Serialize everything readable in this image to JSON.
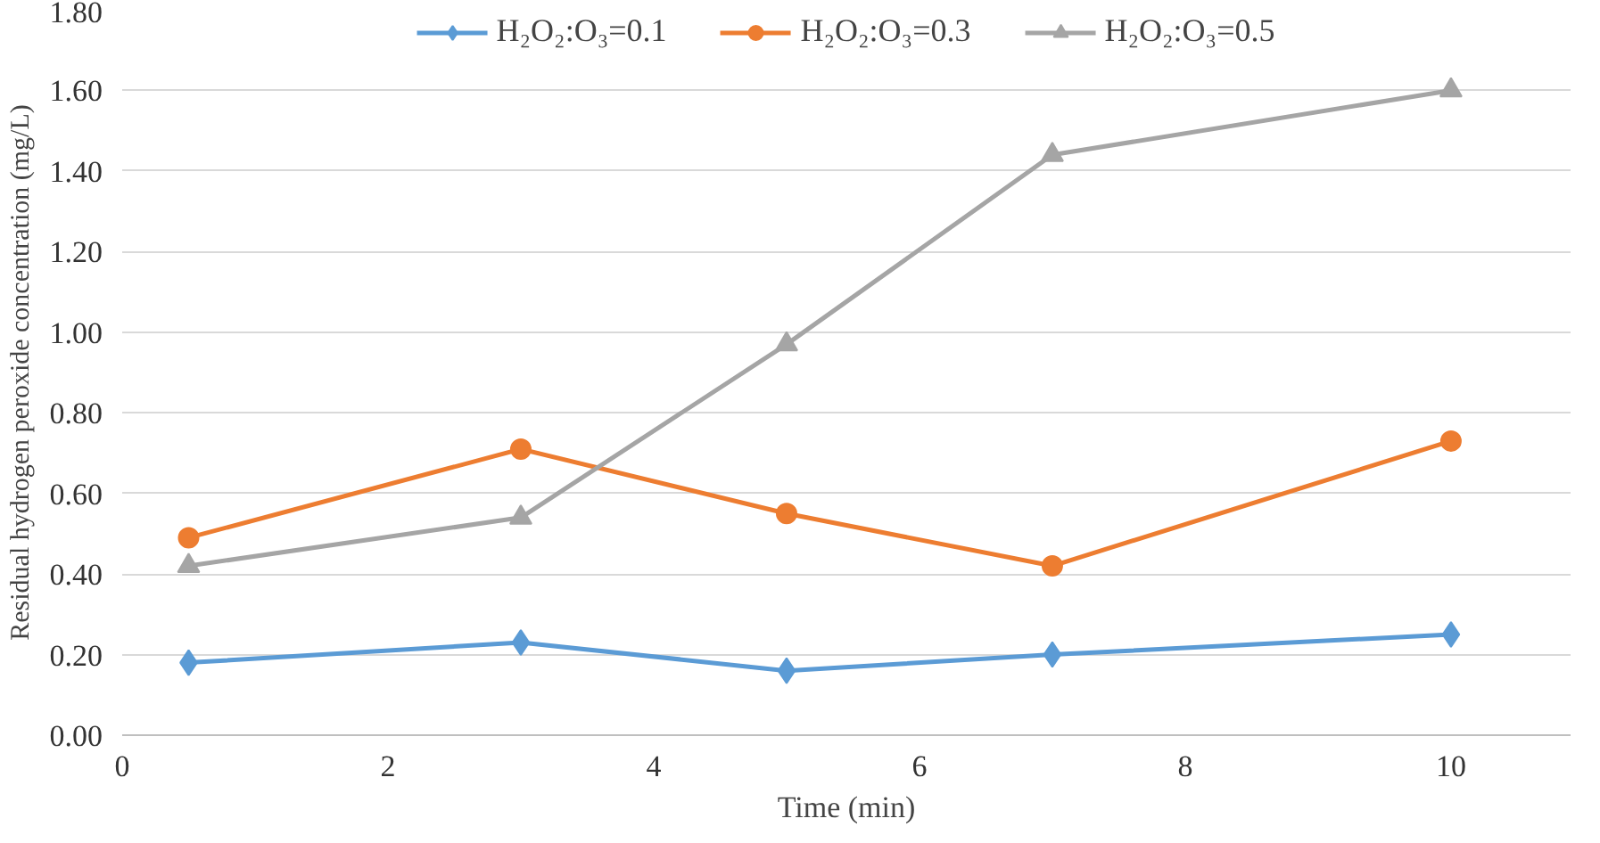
{
  "chart_data": {
    "type": "line",
    "xlabel": "Time (min)",
    "ylabel": "Residual hydrogen peroxide concentration (mg/L)",
    "x": [
      0.5,
      3,
      5,
      7,
      10
    ],
    "series": [
      {
        "name": "H₂O₂:O₃=0.1",
        "color": "#5b9bd5",
        "marker": "diamond",
        "values": [
          0.18,
          0.23,
          0.16,
          0.2,
          0.25
        ]
      },
      {
        "name": "H₂O₂:O₃=0.3",
        "color": "#ed7d31",
        "marker": "circle",
        "values": [
          0.49,
          0.71,
          0.55,
          0.42,
          0.73
        ]
      },
      {
        "name": "H₂O₂:O₃=0.5",
        "color": "#a5a5a5",
        "marker": "triangle",
        "values": [
          0.42,
          0.54,
          0.97,
          1.44,
          1.6
        ]
      }
    ],
    "xlim": [
      0,
      10.9
    ],
    "xticks": [
      0,
      2,
      4,
      6,
      8,
      10
    ],
    "ylim": [
      0,
      1.8
    ],
    "yticks": [
      {
        "value": 0,
        "label": "0.00"
      },
      {
        "value": 0.2,
        "label": "0.20"
      },
      {
        "value": 0.4,
        "label": "0.40"
      },
      {
        "value": 0.6,
        "label": "0.60"
      },
      {
        "value": 0.8,
        "label": "0.80"
      },
      {
        "value": 1.0,
        "label": "1.00"
      },
      {
        "value": 1.2,
        "label": "1.20"
      },
      {
        "value": 1.4,
        "label": "1.40"
      },
      {
        "value": 1.6,
        "label": "1.60"
      },
      {
        "value": 1.8,
        "label": "1.80"
      }
    ],
    "grid": "y",
    "legend": "top",
    "line_style": "solid"
  }
}
